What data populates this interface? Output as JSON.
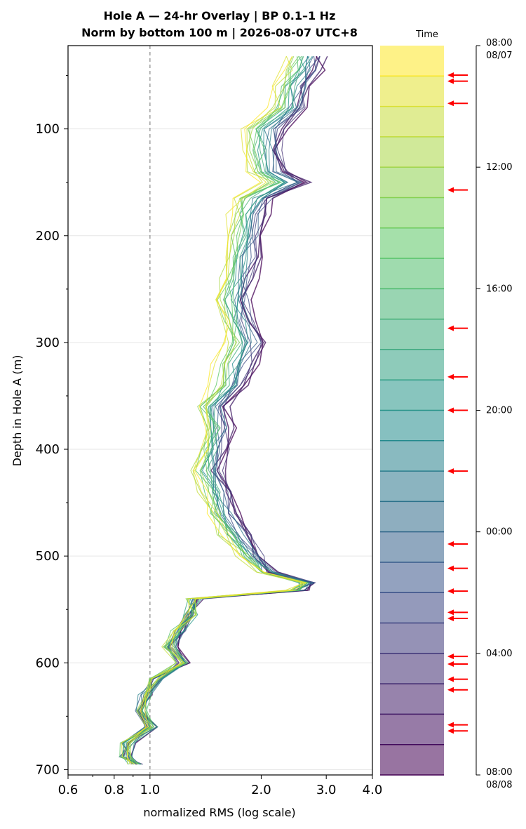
{
  "chart_data": {
    "type": "line",
    "title_line1": "Hole A — 24-hr Overlay  |  BP 0.1–1 Hz",
    "title_line2": "Norm by bottom 100 m  |  2026-08-07 UTC+8",
    "xlabel": "normalized RMS  (log scale)",
    "ylabel": "Depth in Hole A (m)",
    "x_scale": "log",
    "xlim": [
      0.6,
      4.0
    ],
    "ylim": [
      705,
      22
    ],
    "x_ticks": [
      0.6,
      0.8,
      1.0,
      2.0,
      3.0,
      4.0
    ],
    "x_tick_labels": [
      "0.6",
      "0.8",
      "1.0",
      "2.0",
      "3.0",
      "4.0"
    ],
    "y_ticks": [
      100,
      200,
      300,
      400,
      500,
      600,
      700
    ],
    "y_tick_labels": [
      "100",
      "200",
      "300",
      "400",
      "500",
      "600",
      "700"
    ],
    "reference_line_x": 1.0,
    "grid": "horizontal",
    "profile": {
      "depth": [
        32,
        45,
        60,
        80,
        100,
        120,
        140,
        150,
        165,
        180,
        200,
        220,
        240,
        260,
        280,
        300,
        320,
        340,
        360,
        380,
        400,
        420,
        440,
        460,
        480,
        500,
        515,
        525,
        532,
        540,
        555,
        570,
        585,
        600,
        615,
        630,
        645,
        660,
        675,
        688,
        695
      ],
      "rms_early": [
        2.95,
        2.85,
        2.7,
        2.6,
        2.3,
        2.25,
        2.35,
        2.7,
        2.15,
        2.05,
        2.0,
        1.95,
        1.9,
        1.85,
        1.9,
        2.0,
        1.9,
        1.8,
        1.6,
        1.65,
        1.6,
        1.55,
        1.65,
        1.7,
        1.85,
        2.0,
        2.2,
        2.75,
        2.6,
        1.35,
        1.3,
        1.2,
        1.15,
        1.25,
        1.05,
        0.98,
        0.95,
        1.02,
        0.88,
        0.86,
        0.92
      ],
      "rms_late": [
        2.35,
        2.3,
        2.2,
        2.15,
        1.8,
        1.85,
        1.8,
        2.0,
        1.7,
        1.65,
        1.62,
        1.58,
        1.55,
        1.52,
        1.58,
        1.62,
        1.52,
        1.48,
        1.35,
        1.4,
        1.38,
        1.32,
        1.38,
        1.45,
        1.55,
        1.75,
        1.95,
        2.55,
        2.4,
        1.3,
        1.28,
        1.18,
        1.12,
        1.2,
        1.03,
        0.96,
        0.94,
        1.0,
        0.86,
        0.85,
        0.9
      ]
    },
    "n_traces": 24,
    "colorbar": {
      "label": "Time",
      "colormap": "viridis",
      "start_color": "#440154",
      "end_color": "#fde725",
      "n_bands": 24,
      "tick_labels": [
        "08:00\n08/07",
        "12:00",
        "16:00",
        "20:00",
        "00:00",
        "04:00",
        "08:00\n08/08"
      ],
      "tick_hours": [
        24,
        20,
        16,
        12,
        8,
        4,
        0
      ],
      "event_marker_color": "#ff0000",
      "event_markers_hours_from_top": [
        0.97,
        1.17,
        1.9,
        4.75,
        9.3,
        10.9,
        12.0,
        14.0,
        16.4,
        17.2,
        17.95,
        18.65,
        18.85,
        20.1,
        20.35,
        20.85,
        21.2,
        22.35,
        22.55
      ]
    }
  }
}
